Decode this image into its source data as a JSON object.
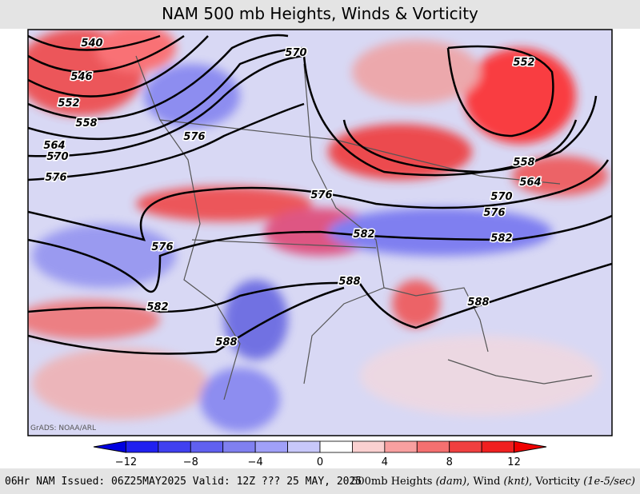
{
  "header": {
    "title": "NAM 500 mb Heights, Winds & Vorticity"
  },
  "map": {
    "credit": "GrADS: NOAA/ARL",
    "contour_labels": [
      "540",
      "546",
      "552",
      "558",
      "564",
      "570",
      "576",
      "576",
      "570",
      "552",
      "558",
      "564",
      "570",
      "576",
      "576",
      "582",
      "582",
      "576",
      "582",
      "588",
      "588",
      "588"
    ]
  },
  "colorbar": {
    "ticks": [
      "−12",
      "−8",
      "−4",
      "0",
      "4",
      "8",
      "12"
    ]
  },
  "footer": {
    "left": "06Hr NAM Issued: 06Z25MAY2025 Valid: 12Z ??? 25 MAY, 2025",
    "right": [
      "500mb Heights ",
      "(dam)",
      ", Wind ",
      "(knt)",
      ", Vorticity ",
      "(1e-5/sec)"
    ]
  }
}
